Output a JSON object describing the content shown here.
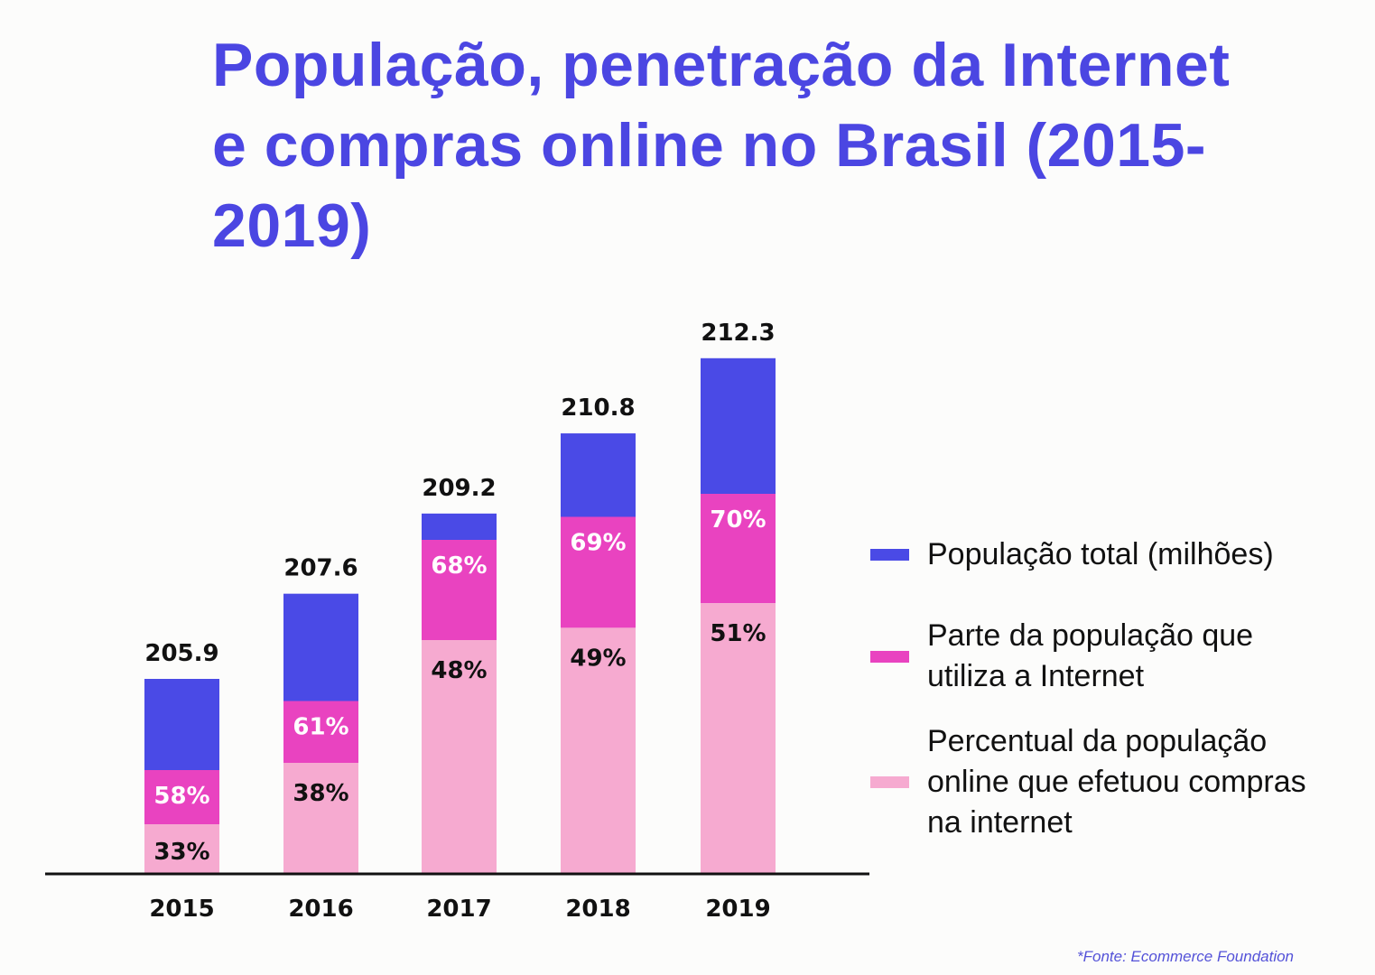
{
  "title": "População, penetração da Internet e compras online no Brasil (2015-2019)",
  "source": "*Fonte: Ecommerce Foundation",
  "colors": {
    "title": "#4b46e2",
    "population": "#4a4ae6",
    "internet": "#e943c0",
    "purchases": "#f6aad0"
  },
  "chart_data": {
    "type": "bar",
    "stacked": true,
    "title": "População, penetração da Internet e compras online no Brasil (2015-2019)",
    "categories": [
      "2015",
      "2016",
      "2017",
      "2018",
      "2019"
    ],
    "series": [
      {
        "name": "População total (milhões)",
        "values": [
          205.9,
          207.6,
          209.2,
          210.8,
          212.3
        ],
        "labels": [
          "205.9",
          "207.6",
          "209.2",
          "210.8",
          "212.3"
        ],
        "color": "#4a4ae6"
      },
      {
        "name": "Parte da população que utiliza a Internet",
        "values": [
          58,
          61,
          68,
          69,
          70
        ],
        "labels": [
          "58%",
          "61%",
          "68%",
          "69%",
          "70%"
        ],
        "color": "#e943c0"
      },
      {
        "name": "Percentual da população online que efetuou compras na internet",
        "values": [
          33,
          38,
          48,
          49,
          51
        ],
        "labels": [
          "33%",
          "38%",
          "48%",
          "49%",
          "51%"
        ],
        "color": "#f6aad0"
      }
    ],
    "legend": "right",
    "grid": false,
    "xlabel": "",
    "ylabel": ""
  }
}
